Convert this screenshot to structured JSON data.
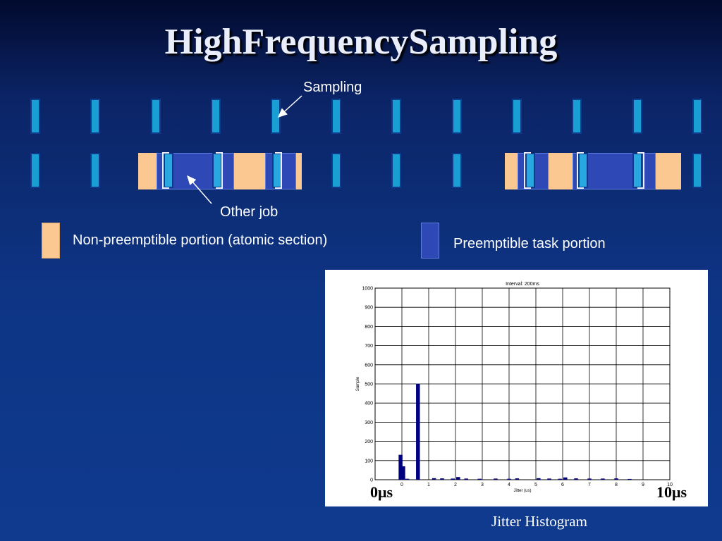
{
  "title": "HighFrequencySampling",
  "labels": {
    "sampling": "Sampling",
    "other_job": "Other job",
    "legend_np": "Non-preemptible portion (atomic section)",
    "legend_pre": "Preemptible task portion"
  },
  "colors": {
    "sample_slot": "#1a9fd5",
    "non_preemptible": "#fcc891",
    "preemptible": "#2e48b5",
    "background": "#0e3585"
  },
  "histogram": {
    "caption": "Jitter Histogram",
    "left_marker": "0μs",
    "right_marker": "10μs"
  },
  "chart_data": {
    "type": "bar",
    "title": "Interval: 200ms",
    "xlabel": "Jitter (us)",
    "ylabel": "Sample",
    "xlim": [
      -1,
      10
    ],
    "ylim": [
      0,
      1000
    ],
    "xticks": [
      0,
      1,
      2,
      3,
      4,
      5,
      6,
      7,
      8,
      9,
      10
    ],
    "yticks": [
      0,
      100,
      200,
      300,
      400,
      500,
      600,
      700,
      800,
      900,
      1000
    ],
    "grid": true,
    "x": [
      -0.05,
      0.05,
      0.2,
      0.6,
      1.2,
      1.5,
      1.9,
      2.1,
      2.4,
      2.9,
      3.5,
      4.0,
      4.3,
      5.1,
      5.5,
      5.9,
      6.1,
      6.5,
      7.0,
      7.5,
      8.0,
      8.5
    ],
    "values": [
      130,
      70,
      5,
      500,
      8,
      7,
      6,
      14,
      6,
      5,
      6,
      5,
      7,
      8,
      6,
      5,
      12,
      7,
      6,
      6,
      7,
      4
    ]
  }
}
